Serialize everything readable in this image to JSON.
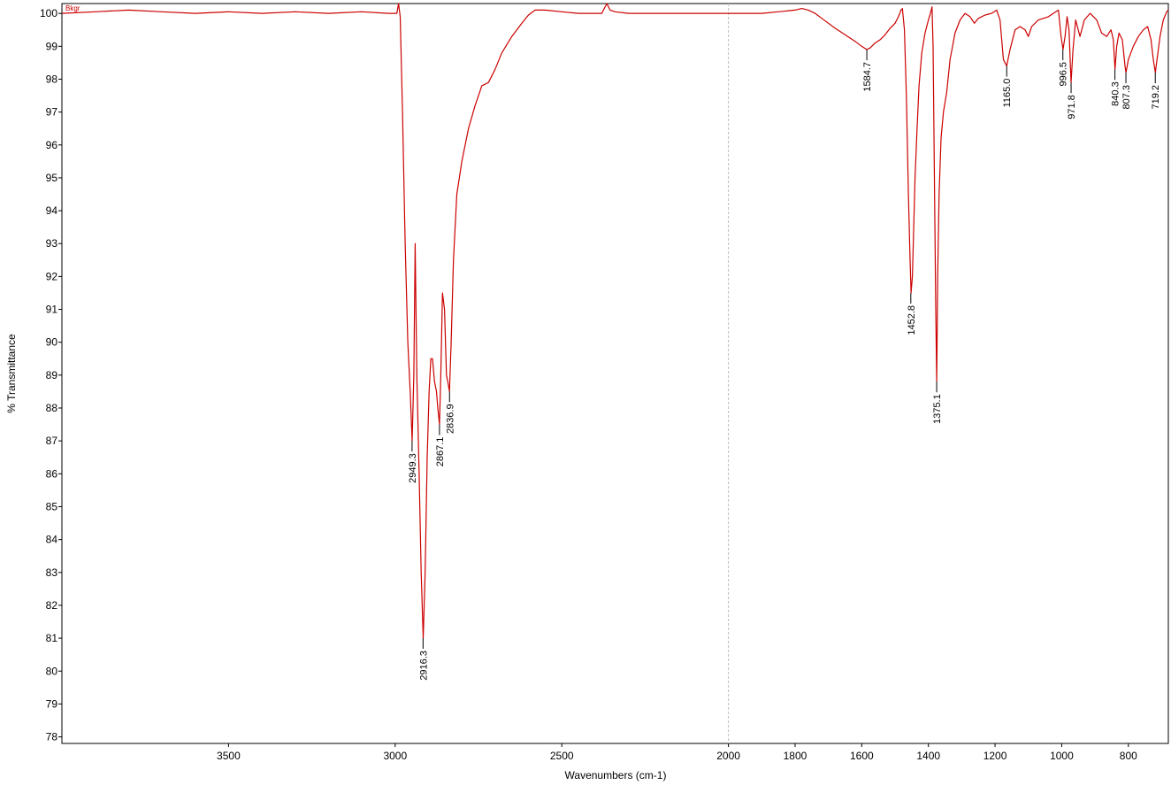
{
  "chart_data": {
    "type": "line",
    "title": "",
    "xlabel": "Wavenumbers (cm-1)",
    "ylabel": "% Transmittance",
    "xlim": [
      4000,
      680
    ],
    "ylim": [
      77.8,
      100.3
    ],
    "x_reversed": true,
    "x_ticks": [
      3500,
      3000,
      2500,
      2000,
      1800,
      1600,
      1400,
      1200,
      1000,
      800
    ],
    "y_ticks": [
      78,
      79,
      80,
      81,
      82,
      83,
      84,
      85,
      86,
      87,
      88,
      89,
      90,
      91,
      92,
      93,
      94,
      95,
      96,
      97,
      98,
      99,
      100
    ],
    "x_tick_labels": [
      "3500",
      "3000",
      "2500",
      "2000",
      "1800",
      "1600",
      "1400",
      "1200",
      "1000",
      "800"
    ],
    "y_tick_labels": [
      "78",
      "79",
      "80",
      "81",
      "82",
      "83",
      "84",
      "85",
      "86",
      "87",
      "88",
      "89",
      "90",
      "91",
      "92",
      "93",
      "94",
      "95",
      "96",
      "97",
      "98",
      "99",
      "100"
    ],
    "reference_line_x": 2000,
    "grid": false,
    "legend_tag": "Bkgr",
    "series": [
      {
        "color": "#cc0000",
        "points": [
          [
            4000,
            100.0
          ],
          [
            3900,
            100.05
          ],
          [
            3800,
            100.1
          ],
          [
            3700,
            100.05
          ],
          [
            3600,
            100.0
          ],
          [
            3500,
            100.05
          ],
          [
            3400,
            100.0
          ],
          [
            3300,
            100.05
          ],
          [
            3200,
            100.0
          ],
          [
            3100,
            100.05
          ],
          [
            3020,
            100.0
          ],
          [
            2995,
            100.0
          ],
          [
            2990,
            100.3
          ],
          [
            2985,
            99.9
          ],
          [
            2978,
            97.0
          ],
          [
            2970,
            93.0
          ],
          [
            2962,
            90.0
          ],
          [
            2955,
            88.5
          ],
          [
            2949,
            87.0
          ],
          [
            2944,
            89.0
          ],
          [
            2940,
            93.0
          ],
          [
            2935,
            89.0
          ],
          [
            2928,
            86.0
          ],
          [
            2922,
            83.0
          ],
          [
            2916,
            81.0
          ],
          [
            2910,
            83.0
          ],
          [
            2904,
            86.5
          ],
          [
            2898,
            88.5
          ],
          [
            2893,
            89.5
          ],
          [
            2888,
            89.5
          ],
          [
            2882,
            88.8
          ],
          [
            2876,
            88.5
          ],
          [
            2872,
            88.0
          ],
          [
            2867,
            87.5
          ],
          [
            2863,
            89.0
          ],
          [
            2858,
            91.5
          ],
          [
            2852,
            91.0
          ],
          [
            2846,
            89.0
          ],
          [
            2842,
            88.8
          ],
          [
            2837,
            88.5
          ],
          [
            2832,
            90.0
          ],
          [
            2825,
            92.5
          ],
          [
            2815,
            94.5
          ],
          [
            2800,
            95.5
          ],
          [
            2780,
            96.5
          ],
          [
            2760,
            97.2
          ],
          [
            2740,
            97.8
          ],
          [
            2720,
            97.9
          ],
          [
            2700,
            98.3
          ],
          [
            2680,
            98.8
          ],
          [
            2650,
            99.3
          ],
          [
            2620,
            99.7
          ],
          [
            2600,
            99.95
          ],
          [
            2580,
            100.1
          ],
          [
            2550,
            100.1
          ],
          [
            2500,
            100.05
          ],
          [
            2450,
            100.0
          ],
          [
            2380,
            100.0
          ],
          [
            2365,
            100.3
          ],
          [
            2355,
            100.1
          ],
          [
            2340,
            100.05
          ],
          [
            2300,
            100.0
          ],
          [
            2200,
            100.0
          ],
          [
            2100,
            100.0
          ],
          [
            2000,
            100.0
          ],
          [
            1900,
            100.0
          ],
          [
            1850,
            100.05
          ],
          [
            1800,
            100.1
          ],
          [
            1780,
            100.15
          ],
          [
            1760,
            100.1
          ],
          [
            1740,
            100.0
          ],
          [
            1720,
            99.85
          ],
          [
            1700,
            99.7
          ],
          [
            1680,
            99.55
          ],
          [
            1650,
            99.35
          ],
          [
            1620,
            99.15
          ],
          [
            1600,
            99.0
          ],
          [
            1585,
            98.9
          ],
          [
            1575,
            98.95
          ],
          [
            1560,
            99.1
          ],
          [
            1545,
            99.2
          ],
          [
            1530,
            99.35
          ],
          [
            1515,
            99.55
          ],
          [
            1500,
            99.7
          ],
          [
            1490,
            99.9
          ],
          [
            1482,
            100.1
          ],
          [
            1478,
            100.15
          ],
          [
            1472,
            99.5
          ],
          [
            1466,
            97.5
          ],
          [
            1460,
            94.5
          ],
          [
            1455,
            92.5
          ],
          [
            1452,
            91.5
          ],
          [
            1448,
            92.0
          ],
          [
            1444,
            93.5
          ],
          [
            1440,
            95.0
          ],
          [
            1434,
            96.5
          ],
          [
            1428,
            97.8
          ],
          [
            1420,
            98.8
          ],
          [
            1410,
            99.4
          ],
          [
            1400,
            99.8
          ],
          [
            1394,
            100.0
          ],
          [
            1389,
            100.2
          ],
          [
            1386,
            99.0
          ],
          [
            1382,
            95.0
          ],
          [
            1378,
            91.0
          ],
          [
            1375,
            88.8
          ],
          [
            1372,
            92.0
          ],
          [
            1368,
            94.5
          ],
          [
            1362,
            96.2
          ],
          [
            1355,
            97.0
          ],
          [
            1345,
            97.6
          ],
          [
            1335,
            98.6
          ],
          [
            1320,
            99.4
          ],
          [
            1305,
            99.8
          ],
          [
            1290,
            100.0
          ],
          [
            1275,
            99.9
          ],
          [
            1262,
            99.7
          ],
          [
            1250,
            99.85
          ],
          [
            1230,
            99.95
          ],
          [
            1210,
            100.0
          ],
          [
            1195,
            100.1
          ],
          [
            1185,
            99.8
          ],
          [
            1175,
            98.6
          ],
          [
            1165,
            98.4
          ],
          [
            1155,
            98.9
          ],
          [
            1140,
            99.5
          ],
          [
            1125,
            99.6
          ],
          [
            1110,
            99.5
          ],
          [
            1100,
            99.3
          ],
          [
            1090,
            99.6
          ],
          [
            1070,
            99.8
          ],
          [
            1040,
            99.9
          ],
          [
            1010,
            100.1
          ],
          [
            1002,
            99.3
          ],
          [
            996,
            98.9
          ],
          [
            990,
            99.3
          ],
          [
            984,
            99.9
          ],
          [
            978,
            99.5
          ],
          [
            972,
            97.9
          ],
          [
            966,
            98.9
          ],
          [
            958,
            99.8
          ],
          [
            945,
            99.3
          ],
          [
            932,
            99.8
          ],
          [
            915,
            100.0
          ],
          [
            895,
            99.8
          ],
          [
            880,
            99.4
          ],
          [
            865,
            99.3
          ],
          [
            852,
            99.5
          ],
          [
            845,
            99.2
          ],
          [
            840,
            98.3
          ],
          [
            835,
            99.0
          ],
          [
            828,
            99.4
          ],
          [
            818,
            99.2
          ],
          [
            810,
            98.4
          ],
          [
            807,
            98.2
          ],
          [
            800,
            98.6
          ],
          [
            785,
            99.0
          ],
          [
            770,
            99.3
          ],
          [
            755,
            99.5
          ],
          [
            742,
            99.6
          ],
          [
            732,
            99.2
          ],
          [
            725,
            98.6
          ],
          [
            719,
            98.2
          ],
          [
            714,
            98.6
          ],
          [
            705,
            99.3
          ],
          [
            695,
            99.8
          ],
          [
            685,
            100.05
          ],
          [
            680,
            100.1
          ]
        ]
      }
    ],
    "peaks": [
      {
        "x": 2949.3,
        "y": 87.0,
        "label": "2949.3"
      },
      {
        "x": 2916.3,
        "y": 81.0,
        "label": "2916.3"
      },
      {
        "x": 2867.1,
        "y": 87.5,
        "label": "2867.1"
      },
      {
        "x": 2836.9,
        "y": 88.5,
        "label": "2836.9"
      },
      {
        "x": 1584.7,
        "y": 98.9,
        "label": "1584.7"
      },
      {
        "x": 1452.8,
        "y": 91.5,
        "label": "1452.8"
      },
      {
        "x": 1375.1,
        "y": 88.8,
        "label": "1375.1"
      },
      {
        "x": 1165.0,
        "y": 98.4,
        "label": "1165.0"
      },
      {
        "x": 996.5,
        "y": 98.9,
        "label": "996.5"
      },
      {
        "x": 971.8,
        "y": 97.9,
        "label": "971.8"
      },
      {
        "x": 840.3,
        "y": 98.3,
        "label": "840.3"
      },
      {
        "x": 807.3,
        "y": 98.2,
        "label": "807.3"
      },
      {
        "x": 719.2,
        "y": 98.2,
        "label": "719.2"
      }
    ]
  }
}
